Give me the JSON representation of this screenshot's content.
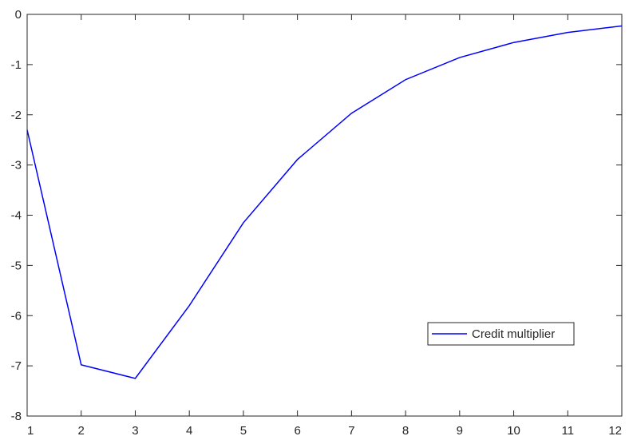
{
  "chart_data": {
    "type": "line",
    "title": "",
    "xlabel": "",
    "ylabel": "",
    "xlim": [
      1,
      12
    ],
    "ylim": [
      -8,
      0
    ],
    "x_ticks": [
      1,
      2,
      3,
      4,
      5,
      6,
      7,
      8,
      9,
      10,
      11,
      12
    ],
    "y_ticks": [
      0,
      -1,
      -2,
      -3,
      -4,
      -5,
      -6,
      -7,
      -8
    ],
    "grid": false,
    "legend_position": "lower-right",
    "x": [
      1,
      2,
      3,
      4,
      5,
      6,
      7,
      8,
      9,
      10,
      11,
      12
    ],
    "series": [
      {
        "name": "Credit multiplier",
        "color": "#0000ff",
        "values": [
          -2.3,
          -6.98,
          -7.25,
          -5.8,
          -4.15,
          -2.89,
          -1.97,
          -1.3,
          -0.86,
          -0.56,
          -0.36,
          -0.23
        ]
      }
    ]
  }
}
